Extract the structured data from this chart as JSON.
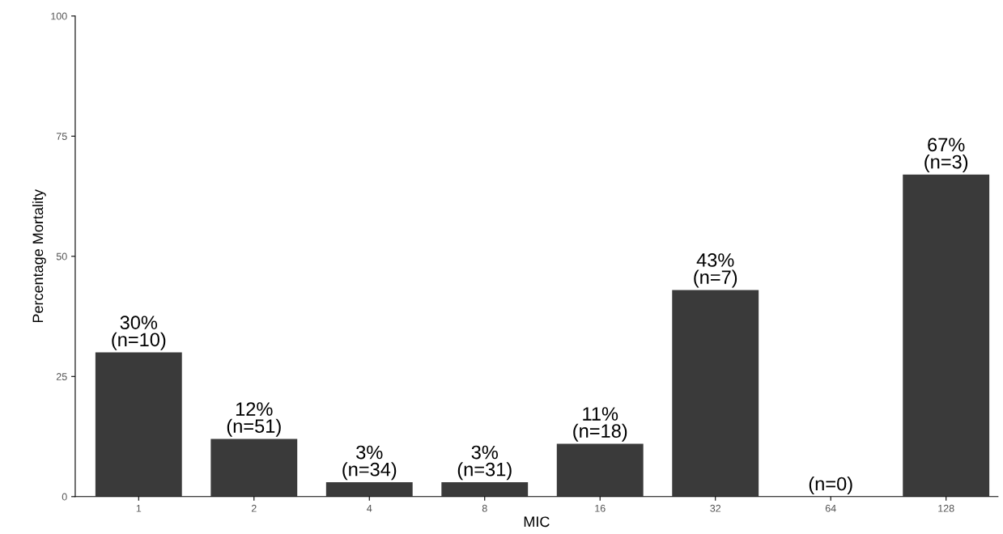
{
  "chart_data": {
    "type": "bar",
    "xlabel": "MIC",
    "ylabel": "Percentage Mortality",
    "categories": [
      "1",
      "2",
      "4",
      "8",
      "16",
      "32",
      "64",
      "128"
    ],
    "values": [
      30,
      12,
      3,
      3,
      11,
      43,
      0,
      67
    ],
    "value_labels": [
      "30%\n(n=10)",
      "12%\n(n=51)",
      "3%\n(n=34)",
      "3%\n(n=31)",
      "11%\n(n=18)",
      "43%\n(n=7)",
      "(n=0)",
      "67%\n(n=3)"
    ],
    "color": "#3a3a3a",
    "ylim": [
      0,
      100
    ],
    "yticks": [
      0,
      25,
      50,
      75,
      100
    ],
    "grid": false
  }
}
